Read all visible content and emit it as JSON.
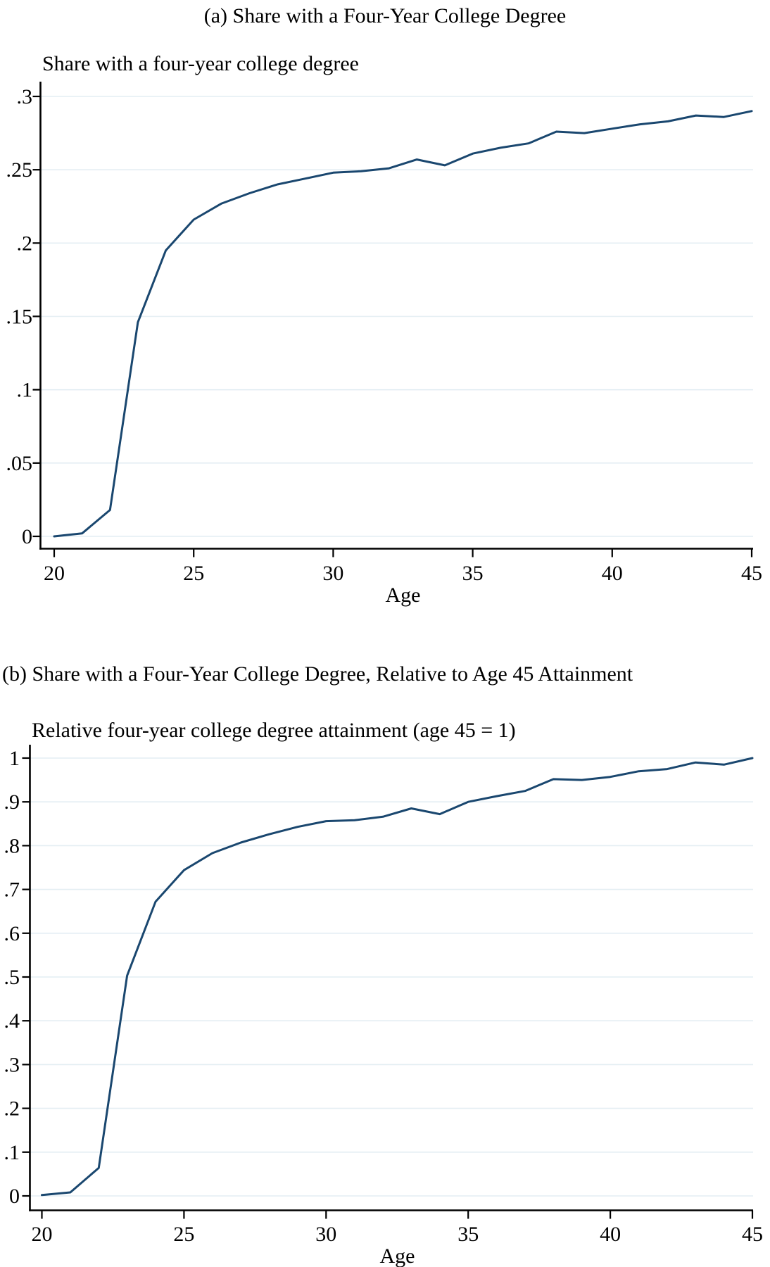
{
  "figure": {
    "background_color": "#ffffff",
    "text_color": "#000000"
  },
  "chart_data": [
    {
      "type": "line",
      "title": "(a) Share with a Four-Year College Degree",
      "ylabel": "Share with a four-year college degree",
      "xlabel": "Age",
      "x": [
        20,
        21,
        22,
        23,
        24,
        25,
        26,
        27,
        28,
        29,
        30,
        31,
        32,
        33,
        34,
        35,
        36,
        37,
        38,
        39,
        40,
        41,
        42,
        43,
        44,
        45
      ],
      "values": [
        0.0,
        0.002,
        0.018,
        0.146,
        0.195,
        0.216,
        0.227,
        0.234,
        0.24,
        0.244,
        0.248,
        0.249,
        0.251,
        0.257,
        0.253,
        0.261,
        0.265,
        0.268,
        0.276,
        0.275,
        0.278,
        0.281,
        0.283,
        0.287,
        0.286,
        0.29
      ],
      "xlim": [
        20,
        45
      ],
      "ylim": [
        0,
        0.3
      ],
      "xticks": [
        20,
        25,
        30,
        35,
        40,
        45
      ],
      "xtick_labels": [
        "20",
        "25",
        "30",
        "35",
        "40",
        "45"
      ],
      "yticks": [
        0,
        0.05,
        0.1,
        0.15,
        0.2,
        0.25,
        0.3
      ],
      "ytick_labels": [
        "0",
        ".05",
        ".1",
        ".15",
        ".2",
        ".25",
        ".3"
      ],
      "grid": true,
      "legend": false,
      "line_color": "#1a476f",
      "grid_color": "#e4eef3",
      "axis_color": "#000000"
    },
    {
      "type": "line",
      "title": "(b) Share with a Four-Year College Degree, Relative to Age 45 Attainment",
      "ylabel": "Relative four-year college degree attainment (age 45 = 1)",
      "xlabel": "Age",
      "x": [
        20,
        21,
        22,
        23,
        24,
        25,
        26,
        27,
        28,
        29,
        30,
        31,
        32,
        33,
        34,
        35,
        36,
        37,
        38,
        39,
        40,
        41,
        42,
        43,
        44,
        45
      ],
      "values": [
        0.002,
        0.008,
        0.064,
        0.503,
        0.672,
        0.744,
        0.783,
        0.807,
        0.826,
        0.843,
        0.856,
        0.858,
        0.866,
        0.885,
        0.872,
        0.9,
        0.913,
        0.925,
        0.952,
        0.95,
        0.957,
        0.97,
        0.975,
        0.99,
        0.985,
        1.0
      ],
      "xlim": [
        20,
        45
      ],
      "ylim": [
        0,
        1
      ],
      "xticks": [
        20,
        25,
        30,
        35,
        40,
        45
      ],
      "xtick_labels": [
        "20",
        "25",
        "30",
        "35",
        "40",
        "45"
      ],
      "yticks": [
        0,
        0.1,
        0.2,
        0.3,
        0.4,
        0.5,
        0.6,
        0.7,
        0.8,
        0.9,
        1
      ],
      "ytick_labels": [
        "0",
        ".1",
        ".2",
        ".3",
        ".4",
        ".5",
        ".6",
        ".7",
        ".8",
        ".9",
        "1"
      ],
      "grid": true,
      "legend": false,
      "line_color": "#1a476f",
      "grid_color": "#e4eef3",
      "axis_color": "#000000"
    }
  ]
}
